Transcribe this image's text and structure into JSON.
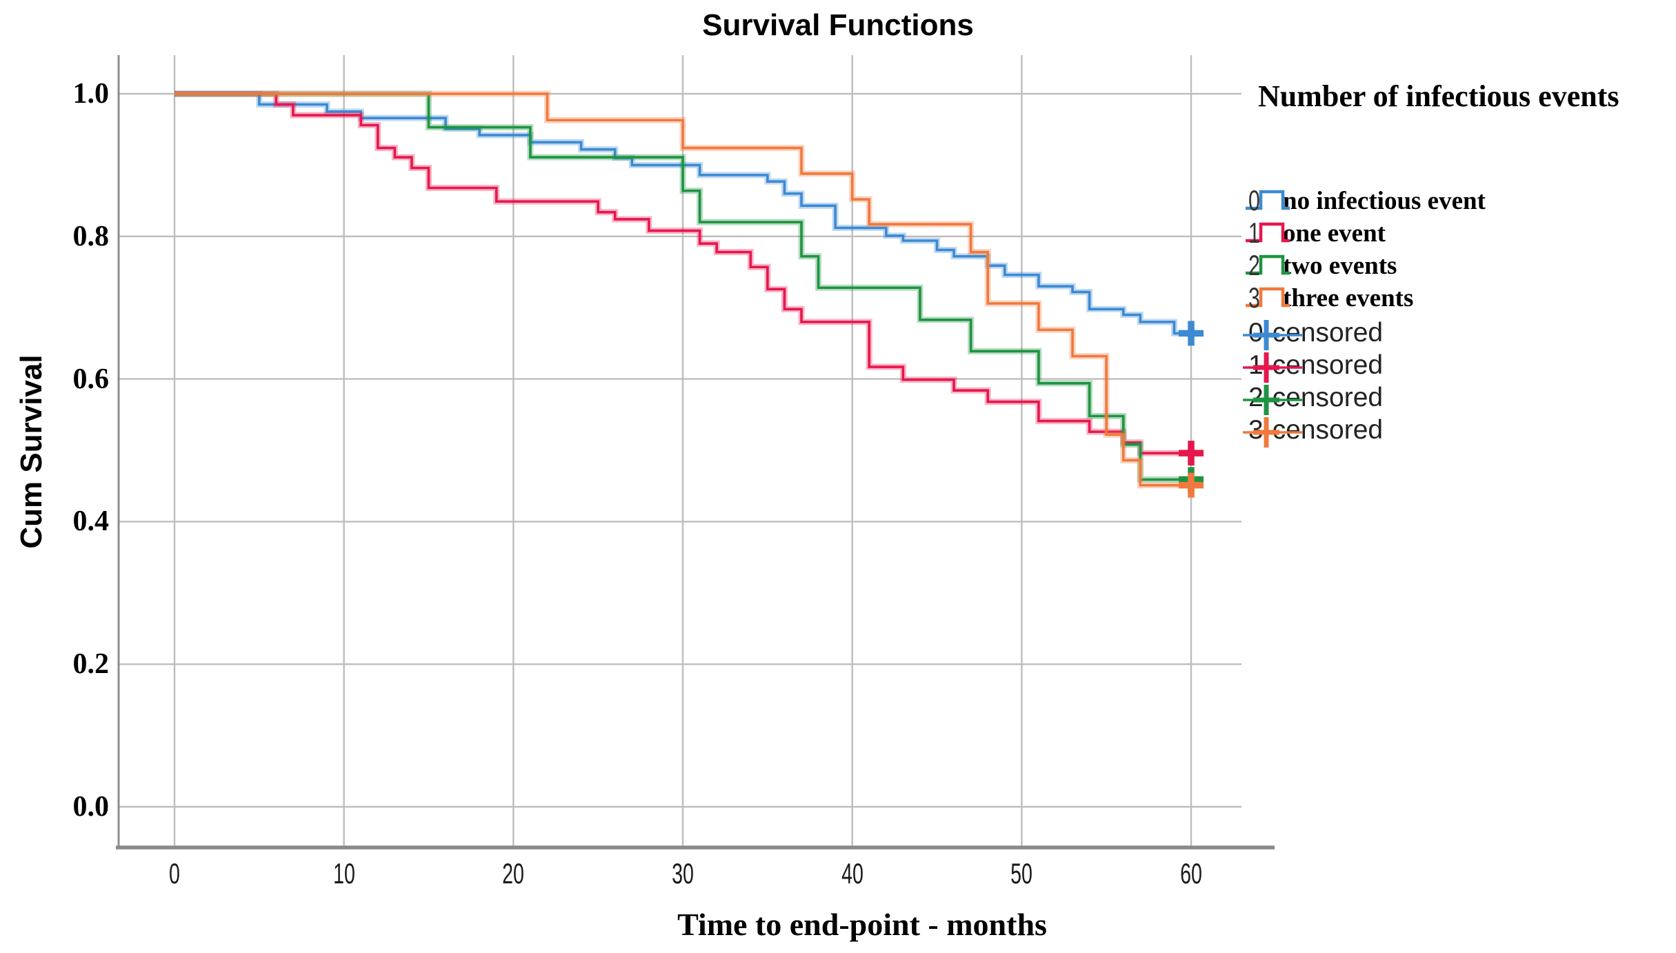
{
  "chart_data": {
    "type": "line",
    "subtype": "kaplan-meier-step-survival",
    "title": "Survival Functions",
    "xlabel": "Time to end-point - months",
    "ylabel": "Cum Survival",
    "x_ticks": [
      "0",
      "10",
      "20",
      "30",
      "40",
      "50",
      "60"
    ],
    "x_tick_values": [
      0,
      10,
      20,
      30,
      40,
      50,
      60
    ],
    "x_range": [
      0,
      60
    ],
    "y_ticks": [
      "0.0",
      "0.2",
      "0.4",
      "0.6",
      "0.8",
      "1.0"
    ],
    "y_tick_values": [
      0.0,
      0.2,
      0.4,
      0.6,
      0.8,
      1.0
    ],
    "y_range": [
      0.0,
      1.0
    ],
    "grid": true,
    "legend_position": "right",
    "legend_title": "Number of infectious events",
    "colors": {
      "gridline": "#bdbdbd",
      "y_axis_line": "#8e8e8e",
      "x_axis_line": "#8a8a8a",
      "x_tick_label": "#1a1a1a",
      "legend_number": "#333333",
      "series_0": "#3c8ad2",
      "series_1": "#e5174d",
      "series_2": "#1f9342",
      "series_3": "#f0793d"
    },
    "series": [
      {
        "id": "0",
        "legend_number": "0",
        "legend_label": "no infectious event",
        "censored_label": "0-censored",
        "color": "#3c8ad2",
        "start": [
          0,
          1.0
        ],
        "steps": [
          [
            5,
            0.985
          ],
          [
            9,
            0.975
          ],
          [
            11,
            0.966
          ],
          [
            16,
            0.951
          ],
          [
            18,
            0.942
          ],
          [
            21,
            0.932
          ],
          [
            24,
            0.922
          ],
          [
            26,
            0.91
          ],
          [
            27,
            0.9
          ],
          [
            31,
            0.886
          ],
          [
            35,
            0.877
          ],
          [
            36,
            0.86
          ],
          [
            37,
            0.843
          ],
          [
            39,
            0.812
          ],
          [
            42,
            0.801
          ],
          [
            43,
            0.794
          ],
          [
            45,
            0.781
          ],
          [
            46,
            0.772
          ],
          [
            48,
            0.759
          ],
          [
            49,
            0.746
          ],
          [
            51,
            0.73
          ],
          [
            53,
            0.722
          ],
          [
            54,
            0.698
          ],
          [
            56,
            0.69
          ],
          [
            57,
            0.68
          ],
          [
            59,
            0.664
          ]
        ],
        "end_month": 60,
        "censor_markers": [
          [
            60,
            0.664
          ]
        ]
      },
      {
        "id": "1",
        "legend_number": "1",
        "legend_label": "one event",
        "censored_label": "1-censored",
        "color": "#e5174d",
        "start": [
          0,
          1.0
        ],
        "steps": [
          [
            6,
            0.985
          ],
          [
            7,
            0.97
          ],
          [
            11,
            0.956
          ],
          [
            12,
            0.924
          ],
          [
            13,
            0.911
          ],
          [
            14,
            0.896
          ],
          [
            15,
            0.868
          ],
          [
            19,
            0.849
          ],
          [
            25,
            0.834
          ],
          [
            26,
            0.824
          ],
          [
            28,
            0.808
          ],
          [
            31,
            0.79
          ],
          [
            32,
            0.778
          ],
          [
            34,
            0.757
          ],
          [
            35,
            0.726
          ],
          [
            36,
            0.698
          ],
          [
            37,
            0.68
          ],
          [
            41,
            0.617
          ],
          [
            43,
            0.599
          ],
          [
            46,
            0.584
          ],
          [
            48,
            0.568
          ],
          [
            51,
            0.541
          ],
          [
            54,
            0.526
          ],
          [
            56,
            0.511
          ],
          [
            57,
            0.496
          ]
        ],
        "end_month": 60,
        "censor_markers": [
          [
            60,
            0.496
          ]
        ]
      },
      {
        "id": "2",
        "legend_number": "2",
        "legend_label": "two events",
        "censored_label": "2-censored",
        "color": "#1f9342",
        "start": [
          0,
          1.0
        ],
        "steps": [
          [
            15,
            0.953
          ],
          [
            21,
            0.911
          ],
          [
            30,
            0.864
          ],
          [
            31,
            0.82
          ],
          [
            37,
            0.772
          ],
          [
            38,
            0.728
          ],
          [
            44,
            0.683
          ],
          [
            47,
            0.639
          ],
          [
            51,
            0.594
          ],
          [
            54,
            0.548
          ],
          [
            56,
            0.508
          ],
          [
            57,
            0.459
          ]
        ],
        "end_month": 60,
        "censor_markers": [
          [
            60,
            0.459
          ]
        ]
      },
      {
        "id": "3",
        "legend_number": "3",
        "legend_label": "three events",
        "censored_label": "3-censored",
        "color": "#f0793d",
        "start": [
          0,
          1.0
        ],
        "steps": [
          [
            22,
            0.963
          ],
          [
            30,
            0.924
          ],
          [
            37,
            0.888
          ],
          [
            40,
            0.852
          ],
          [
            41,
            0.817
          ],
          [
            47,
            0.778
          ],
          [
            48,
            0.706
          ],
          [
            51,
            0.669
          ],
          [
            53,
            0.632
          ],
          [
            55,
            0.522
          ],
          [
            56,
            0.486
          ],
          [
            57,
            0.451
          ]
        ],
        "end_month": 60,
        "censor_markers": [
          [
            60,
            0.451
          ]
        ]
      }
    ]
  }
}
